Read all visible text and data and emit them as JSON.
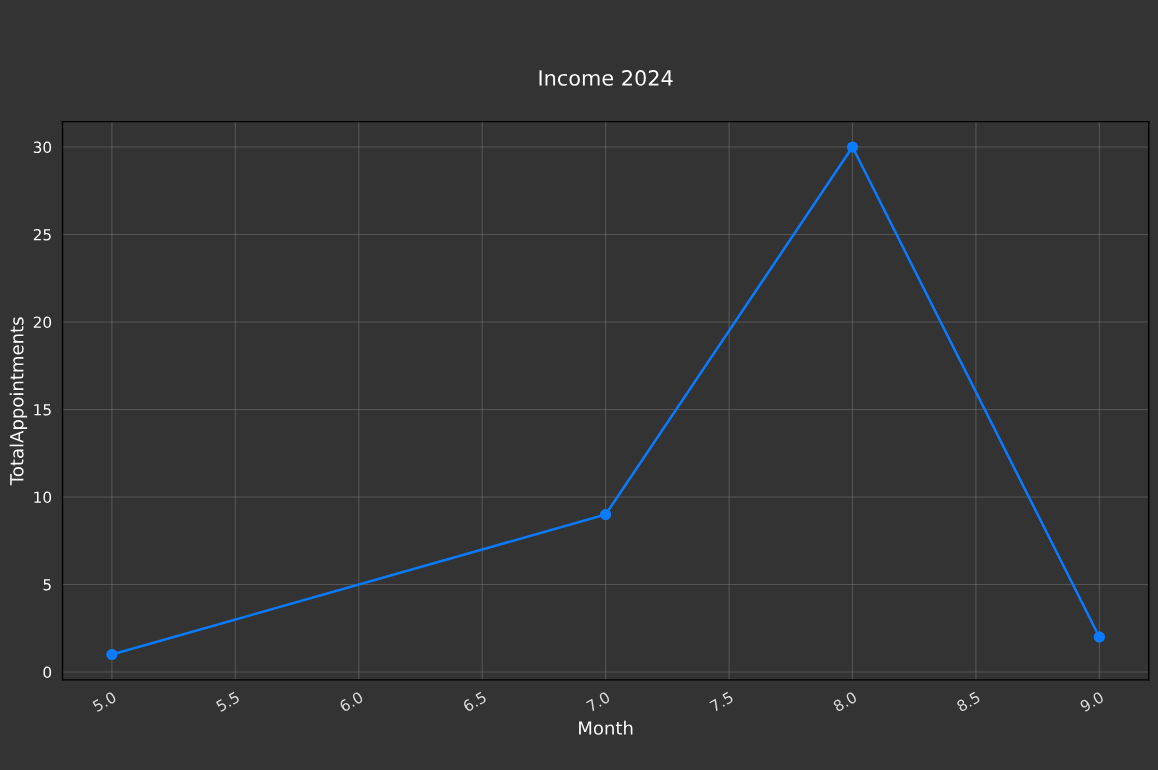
{
  "chart_data": {
    "type": "line",
    "title": "Income 2024",
    "xlabel": "Month",
    "ylabel": "TotalAppointments",
    "x": [
      5,
      7,
      8,
      9
    ],
    "series": [
      {
        "color": "#0a7bff",
        "values": [
          1,
          9,
          30,
          2
        ]
      }
    ],
    "marker": "circle",
    "line_style": "solid",
    "grid": true,
    "legend": false,
    "xlim": [
      4.8,
      9.2
    ],
    "ylim": [
      -0.45,
      31.45
    ],
    "xticks": [
      {
        "value": 5,
        "label": "5.0"
      },
      {
        "value": 5.5,
        "label": "5.5"
      },
      {
        "value": 6,
        "label": "6.0"
      },
      {
        "value": 6.5,
        "label": "6.5"
      },
      {
        "value": 7,
        "label": "7.0"
      },
      {
        "value": 7.5,
        "label": "7.5"
      },
      {
        "value": 8,
        "label": "8.0"
      },
      {
        "value": 8.5,
        "label": "8.5"
      },
      {
        "value": 9,
        "label": "9.0"
      }
    ],
    "yticks": [
      0,
      5,
      10,
      15,
      20,
      25,
      30
    ]
  }
}
